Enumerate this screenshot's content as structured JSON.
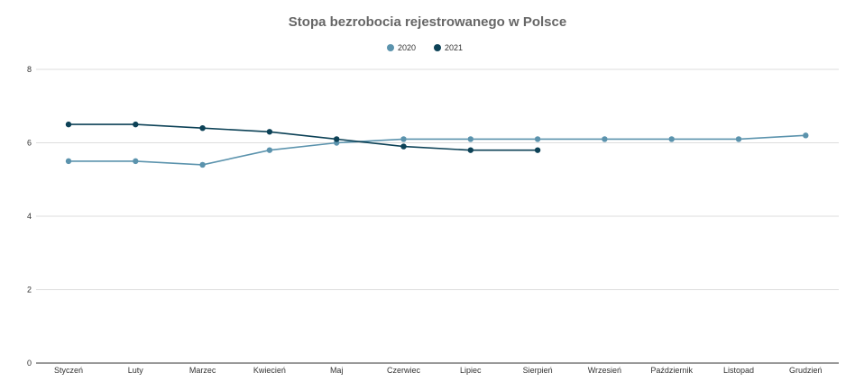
{
  "chart_data": {
    "type": "line",
    "title": "Stopa bezrobocia rejestrowanego w Polsce",
    "categories": [
      "Styczeń",
      "Luty",
      "Marzec",
      "Kwiecień",
      "Maj",
      "Czerwiec",
      "Lipiec",
      "Sierpień",
      "Wrzesień",
      "Październik",
      "Listopad",
      "Grudzień"
    ],
    "series": [
      {
        "name": "2020",
        "color": "#5b93ad",
        "values": [
          5.5,
          5.5,
          5.4,
          5.8,
          6.0,
          6.1,
          6.1,
          6.1,
          6.1,
          6.1,
          6.1,
          6.2
        ]
      },
      {
        "name": "2021",
        "color": "#0d4257",
        "values": [
          6.5,
          6.5,
          6.4,
          6.3,
          6.1,
          5.9,
          5.8,
          5.8,
          null,
          null,
          null,
          null
        ]
      }
    ],
    "ylim": [
      0,
      8
    ],
    "yticks": [
      0,
      2,
      4,
      6,
      8
    ],
    "grid": true,
    "legend_position": "top-center"
  }
}
